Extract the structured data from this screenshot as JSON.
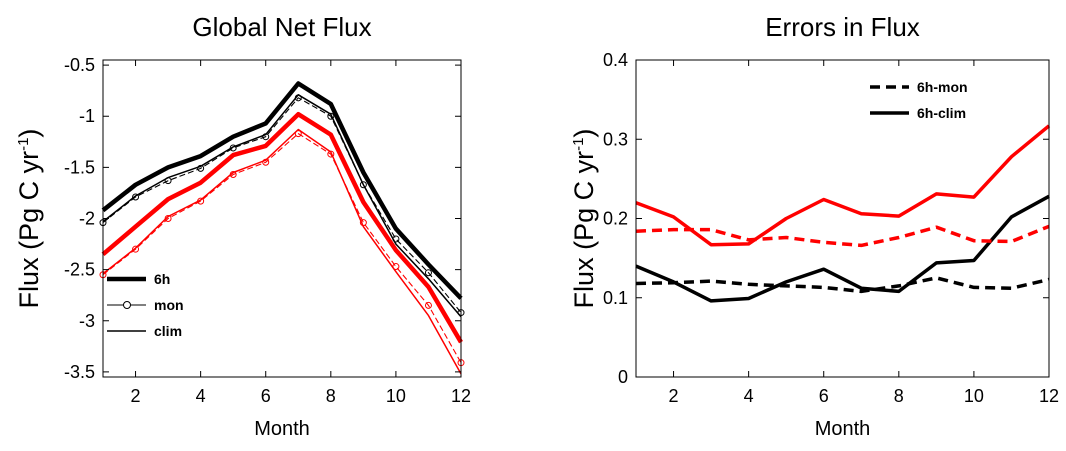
{
  "chart_data": [
    {
      "type": "line",
      "title": "Global Net Flux",
      "xlabel": "Month",
      "ylabel": "Flux (Pg C yr",
      "ylabel_sup": "-1",
      "ylabel_end": ")",
      "xlim": [
        1,
        12
      ],
      "ylim": [
        -3.55,
        -0.45
      ],
      "xticks": [
        2,
        4,
        6,
        8,
        10,
        12
      ],
      "yticks": [
        -0.5,
        -1,
        -1.5,
        -2,
        -2.5,
        -3,
        -3.5
      ],
      "grid": false,
      "legend_position": "lower-left",
      "legend": [
        {
          "label": "6h",
          "style": "thick"
        },
        {
          "label": "mon",
          "style": "marker"
        },
        {
          "label": "clim",
          "style": "thin"
        }
      ],
      "x": [
        1,
        2,
        3,
        4,
        5,
        6,
        7,
        8,
        9,
        10,
        11,
        12
      ],
      "series": [
        {
          "color": "#000000",
          "style": "thick",
          "values": [
            -1.92,
            -1.67,
            -1.5,
            -1.39,
            -1.2,
            -1.07,
            -0.68,
            -0.88,
            -1.55,
            -2.1,
            -2.45,
            -2.78
          ]
        },
        {
          "color": "#000000",
          "style": "marker",
          "values": [
            -2.04,
            -1.79,
            -1.63,
            -1.51,
            -1.31,
            -1.2,
            -0.82,
            -1.0,
            -1.67,
            -2.2,
            -2.53,
            -2.92
          ]
        },
        {
          "color": "#000000",
          "style": "thin",
          "values": [
            -2.03,
            -1.78,
            -1.6,
            -1.49,
            -1.3,
            -1.18,
            -0.79,
            -0.98,
            -1.67,
            -2.25,
            -2.59,
            -2.96
          ]
        },
        {
          "color": "#ff0000",
          "style": "thick",
          "values": [
            -2.35,
            -2.08,
            -1.81,
            -1.65,
            -1.38,
            -1.29,
            -0.98,
            -1.18,
            -1.84,
            -2.31,
            -2.67,
            -3.21
          ]
        },
        {
          "color": "#ff0000",
          "style": "marker",
          "values": [
            -2.55,
            -2.3,
            -2.0,
            -1.83,
            -1.57,
            -1.45,
            -1.17,
            -1.37,
            -2.04,
            -2.47,
            -2.85,
            -3.41
          ]
        },
        {
          "color": "#ff0000",
          "style": "thin",
          "values": [
            -2.54,
            -2.29,
            -1.98,
            -1.82,
            -1.55,
            -1.43,
            -1.13,
            -1.35,
            -2.08,
            -2.52,
            -2.95,
            -3.52
          ]
        }
      ]
    },
    {
      "type": "line",
      "title": "Errors in Flux",
      "xlabel": "Month",
      "ylabel": "Flux (Pg C yr",
      "ylabel_sup": "-1",
      "ylabel_end": ")",
      "xlim": [
        1,
        12
      ],
      "ylim": [
        0,
        0.4
      ],
      "xticks": [
        2,
        4,
        6,
        8,
        10,
        12
      ],
      "yticks": [
        0,
        0.1,
        0.2,
        0.3,
        0.4
      ],
      "grid": false,
      "legend_position": "top-right",
      "legend": [
        {
          "label": "6h-mon",
          "style": "dashed"
        },
        {
          "label": "6h-clim",
          "style": "solid"
        }
      ],
      "x": [
        1,
        2,
        3,
        4,
        5,
        6,
        7,
        8,
        9,
        10,
        11,
        12
      ],
      "series": [
        {
          "color": "#000000",
          "style": "dashed",
          "values": [
            0.118,
            0.119,
            0.121,
            0.117,
            0.115,
            0.113,
            0.108,
            0.115,
            0.125,
            0.113,
            0.112,
            0.123
          ]
        },
        {
          "color": "#000000",
          "style": "solid",
          "values": [
            0.14,
            0.12,
            0.096,
            0.099,
            0.12,
            0.136,
            0.112,
            0.108,
            0.144,
            0.147,
            0.202,
            0.228
          ]
        },
        {
          "color": "#ff0000",
          "style": "dashed",
          "values": [
            0.184,
            0.186,
            0.186,
            0.173,
            0.176,
            0.17,
            0.166,
            0.176,
            0.189,
            0.172,
            0.171,
            0.19
          ]
        },
        {
          "color": "#ff0000",
          "style": "solid",
          "values": [
            0.22,
            0.202,
            0.167,
            0.168,
            0.2,
            0.224,
            0.206,
            0.203,
            0.231,
            0.227,
            0.278,
            0.317
          ]
        }
      ]
    }
  ]
}
